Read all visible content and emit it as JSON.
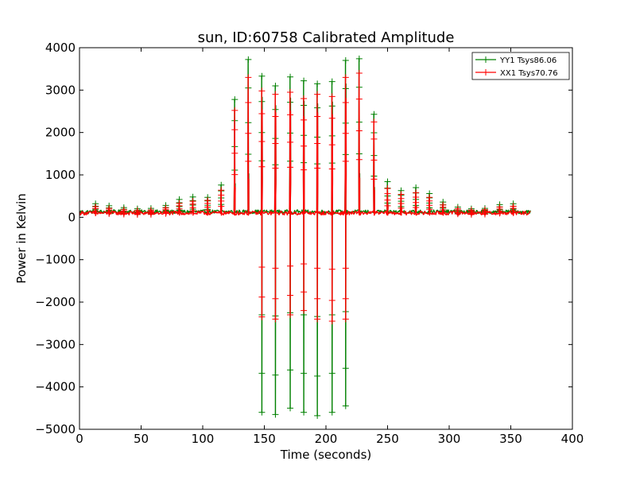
{
  "chart_data": {
    "type": "line",
    "title": "sun, ID:60758 Calibrated Amplitude",
    "xlabel": "Time (seconds)",
    "ylabel": "Power in Kelvin",
    "xlim": [
      0,
      400
    ],
    "ylim": [
      -5000,
      4000
    ],
    "xticks": [
      0,
      50,
      100,
      150,
      200,
      250,
      300,
      350,
      400
    ],
    "yticks": [
      -5000,
      -4000,
      -3000,
      -2000,
      -1000,
      0,
      1000,
      2000,
      3000,
      4000
    ],
    "xtick_labels": [
      "0",
      "50",
      "100",
      "150",
      "200",
      "250",
      "300",
      "350",
      "400"
    ],
    "ytick_labels": [
      "−5000",
      "−4000",
      "−3000",
      "−2000",
      "−1000",
      "0",
      "1000",
      "2000",
      "3000",
      "4000"
    ],
    "grid": false,
    "legend_position": "top-right",
    "marker": "+",
    "x_range": [
      0,
      366
    ],
    "series": [
      {
        "name": "YY1 Tsys86.06",
        "color": "#008000",
        "baseline": 130,
        "peaks": [
          {
            "x": 13,
            "max": 320,
            "min": 80
          },
          {
            "x": 24,
            "max": 270,
            "min": 80
          },
          {
            "x": 36,
            "max": 230,
            "min": 80
          },
          {
            "x": 47,
            "max": 200,
            "min": 80
          },
          {
            "x": 58,
            "max": 210,
            "min": 80
          },
          {
            "x": 70,
            "max": 280,
            "min": 80
          },
          {
            "x": 81,
            "max": 420,
            "min": 80
          },
          {
            "x": 92,
            "max": 480,
            "min": 80
          },
          {
            "x": 104,
            "max": 470,
            "min": 80
          },
          {
            "x": 115,
            "max": 760,
            "min": 80
          },
          {
            "x": 126,
            "max": 2780,
            "min": 80
          },
          {
            "x": 137,
            "max": 3720,
            "min": 80
          },
          {
            "x": 148,
            "max": 3330,
            "min": -4600
          },
          {
            "x": 159,
            "max": 3100,
            "min": -4650
          },
          {
            "x": 171,
            "max": 3310,
            "min": -4500
          },
          {
            "x": 182,
            "max": 3220,
            "min": -4600
          },
          {
            "x": 193,
            "max": 3150,
            "min": -4680
          },
          {
            "x": 205,
            "max": 3200,
            "min": -4600
          },
          {
            "x": 216,
            "max": 3700,
            "min": -4450
          },
          {
            "x": 227,
            "max": 3740,
            "min": 80
          },
          {
            "x": 239,
            "max": 2430,
            "min": 80
          },
          {
            "x": 250,
            "max": 840,
            "min": 80
          },
          {
            "x": 261,
            "max": 630,
            "min": 80
          },
          {
            "x": 273,
            "max": 700,
            "min": 80
          },
          {
            "x": 284,
            "max": 560,
            "min": 80
          },
          {
            "x": 295,
            "max": 360,
            "min": 80
          },
          {
            "x": 307,
            "max": 240,
            "min": 80
          },
          {
            "x": 318,
            "max": 200,
            "min": 80
          },
          {
            "x": 329,
            "max": 210,
            "min": 80
          },
          {
            "x": 341,
            "max": 300,
            "min": 80
          },
          {
            "x": 352,
            "max": 320,
            "min": 80
          }
        ]
      },
      {
        "name": "XX1 Tsys70.76",
        "color": "#ff0000",
        "baseline": 100,
        "peaks": [
          {
            "x": 13,
            "max": 250,
            "min": 50
          },
          {
            "x": 24,
            "max": 210,
            "min": 50
          },
          {
            "x": 36,
            "max": 180,
            "min": 50
          },
          {
            "x": 47,
            "max": 160,
            "min": 50
          },
          {
            "x": 58,
            "max": 170,
            "min": 50
          },
          {
            "x": 70,
            "max": 220,
            "min": 50
          },
          {
            "x": 81,
            "max": 330,
            "min": 50
          },
          {
            "x": 92,
            "max": 380,
            "min": 50
          },
          {
            "x": 104,
            "max": 400,
            "min": 50
          },
          {
            "x": 115,
            "max": 640,
            "min": 50
          },
          {
            "x": 126,
            "max": 2520,
            "min": 50
          },
          {
            "x": 137,
            "max": 3300,
            "min": 50
          },
          {
            "x": 148,
            "max": 2980,
            "min": -2350
          },
          {
            "x": 159,
            "max": 2900,
            "min": -2400
          },
          {
            "x": 171,
            "max": 2950,
            "min": -2300
          },
          {
            "x": 182,
            "max": 2800,
            "min": -2200
          },
          {
            "x": 193,
            "max": 2900,
            "min": -2400
          },
          {
            "x": 205,
            "max": 2850,
            "min": -2450
          },
          {
            "x": 216,
            "max": 3300,
            "min": -2400
          },
          {
            "x": 227,
            "max": 3400,
            "min": 50
          },
          {
            "x": 239,
            "max": 2250,
            "min": 50
          },
          {
            "x": 250,
            "max": 680,
            "min": 50
          },
          {
            "x": 261,
            "max": 540,
            "min": 50
          },
          {
            "x": 273,
            "max": 580,
            "min": 50
          },
          {
            "x": 284,
            "max": 470,
            "min": 50
          },
          {
            "x": 295,
            "max": 290,
            "min": 50
          },
          {
            "x": 307,
            "max": 200,
            "min": 50
          },
          {
            "x": 318,
            "max": 170,
            "min": 50
          },
          {
            "x": 329,
            "max": 180,
            "min": 50
          },
          {
            "x": 341,
            "max": 240,
            "min": 50
          },
          {
            "x": 352,
            "max": 260,
            "min": 50
          }
        ]
      }
    ]
  }
}
